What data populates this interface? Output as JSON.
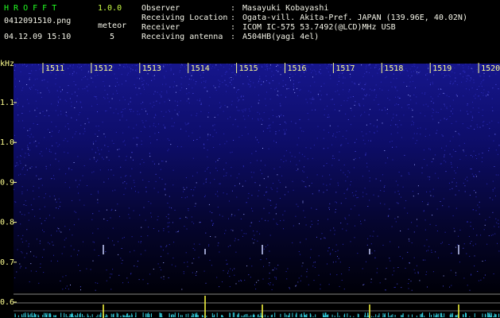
{
  "header": {
    "app_name": "H R O F F T",
    "version": "1.0.0",
    "filename": "0412091510.png",
    "meteor_label": "meteor",
    "datetime": "04.12.09 15:10",
    "meteor_count": "5"
  },
  "info": [
    {
      "label": "Observer",
      "value": "Masayuki Kobayashi"
    },
    {
      "label": "Receiving Location",
      "value": "Ogata-vill. Akita-Pref. JAPAN (139.96E, 40.02N)"
    },
    {
      "label": "Receiver",
      "value": "ICOM IC-575 53.7492(@LCD)MHz USB"
    },
    {
      "label": "Receiving antenna",
      "value": "A504HB(yagi 4el)"
    }
  ],
  "separator": ":",
  "axis": {
    "unit": "kHz",
    "time_ticks": [
      "1511",
      "1512",
      "1513",
      "1514",
      "1515",
      "1516",
      "1517",
      "1518",
      "1519",
      "1520"
    ],
    "freq_ticks": [
      "1.1",
      "1.0",
      "0.9",
      "0.8",
      "0.7",
      "0.6"
    ]
  }
}
